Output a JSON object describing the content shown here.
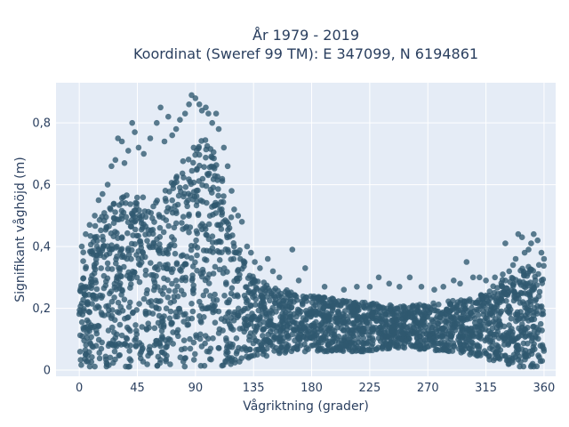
{
  "chart_data": {
    "type": "scatter",
    "title": "År 1979 - 2019",
    "subtitle": "Koordinat (Sweref 99 TM): E 347099, N 6194861",
    "xlabel": "Vågriktning (grader)",
    "ylabel": "Signifikant våghöjd (m)",
    "xlim": [
      -18,
      369
    ],
    "ylim": [
      -0.02,
      0.93
    ],
    "xticks": [
      0,
      45,
      90,
      135,
      180,
      225,
      270,
      315,
      360
    ],
    "xtick_labels": [
      "0",
      "45",
      "90",
      "135",
      "180",
      "225",
      "270",
      "315",
      "360"
    ],
    "yticks": [
      0,
      0.2,
      0.4,
      0.6,
      0.8
    ],
    "ytick_labels": [
      "0",
      "0,2",
      "0,4",
      "0,6",
      "0,8"
    ],
    "grid": true,
    "marker_color": "#2f5870",
    "plot_bgcolor": "#e5ecf6",
    "envelope": {
      "x": [
        0,
        10,
        20,
        30,
        40,
        50,
        60,
        70,
        80,
        90,
        100,
        110,
        120,
        130,
        140,
        150,
        160,
        170,
        180,
        200,
        220,
        240,
        260,
        280,
        300,
        310,
        320,
        330,
        340,
        350,
        360
      ],
      "top": [
        0.38,
        0.45,
        0.52,
        0.57,
        0.58,
        0.56,
        0.55,
        0.6,
        0.68,
        0.74,
        0.75,
        0.66,
        0.46,
        0.33,
        0.29,
        0.27,
        0.26,
        0.25,
        0.24,
        0.23,
        0.22,
        0.21,
        0.21,
        0.22,
        0.23,
        0.24,
        0.27,
        0.3,
        0.33,
        0.34,
        0.36
      ],
      "bottom": [
        0.01,
        0.01,
        0.01,
        0.01,
        0.01,
        0.01,
        0.01,
        0.01,
        0.01,
        0.01,
        0.01,
        0.01,
        0.02,
        0.03,
        0.04,
        0.05,
        0.05,
        0.06,
        0.06,
        0.06,
        0.06,
        0.07,
        0.07,
        0.06,
        0.05,
        0.04,
        0.03,
        0.02,
        0.01,
        0.01,
        0.01
      ]
    },
    "outliers": [
      {
        "x": 2,
        "y": 0.4
      },
      {
        "x": 5,
        "y": 0.44
      },
      {
        "x": 8,
        "y": 0.47
      },
      {
        "x": 12,
        "y": 0.5
      },
      {
        "x": 15,
        "y": 0.55
      },
      {
        "x": 18,
        "y": 0.57
      },
      {
        "x": 22,
        "y": 0.6
      },
      {
        "x": 25,
        "y": 0.66
      },
      {
        "x": 28,
        "y": 0.68
      },
      {
        "x": 30,
        "y": 0.75
      },
      {
        "x": 33,
        "y": 0.74
      },
      {
        "x": 35,
        "y": 0.67
      },
      {
        "x": 38,
        "y": 0.71
      },
      {
        "x": 41,
        "y": 0.8
      },
      {
        "x": 43,
        "y": 0.77
      },
      {
        "x": 46,
        "y": 0.72
      },
      {
        "x": 50,
        "y": 0.7
      },
      {
        "x": 55,
        "y": 0.75
      },
      {
        "x": 60,
        "y": 0.8
      },
      {
        "x": 63,
        "y": 0.85
      },
      {
        "x": 66,
        "y": 0.74
      },
      {
        "x": 69,
        "y": 0.82
      },
      {
        "x": 72,
        "y": 0.76
      },
      {
        "x": 75,
        "y": 0.78
      },
      {
        "x": 78,
        "y": 0.81
      },
      {
        "x": 82,
        "y": 0.83
      },
      {
        "x": 85,
        "y": 0.86
      },
      {
        "x": 87,
        "y": 0.89
      },
      {
        "x": 90,
        "y": 0.88
      },
      {
        "x": 93,
        "y": 0.86
      },
      {
        "x": 95,
        "y": 0.84
      },
      {
        "x": 98,
        "y": 0.85
      },
      {
        "x": 100,
        "y": 0.83
      },
      {
        "x": 103,
        "y": 0.8
      },
      {
        "x": 106,
        "y": 0.83
      },
      {
        "x": 108,
        "y": 0.78
      },
      {
        "x": 112,
        "y": 0.72
      },
      {
        "x": 115,
        "y": 0.66
      },
      {
        "x": 118,
        "y": 0.58
      },
      {
        "x": 120,
        "y": 0.52
      },
      {
        "x": 123,
        "y": 0.5
      },
      {
        "x": 126,
        "y": 0.48
      },
      {
        "x": 130,
        "y": 0.4
      },
      {
        "x": 133,
        "y": 0.38
      },
      {
        "x": 136,
        "y": 0.35
      },
      {
        "x": 140,
        "y": 0.33
      },
      {
        "x": 146,
        "y": 0.36
      },
      {
        "x": 150,
        "y": 0.32
      },
      {
        "x": 155,
        "y": 0.3
      },
      {
        "x": 165,
        "y": 0.39
      },
      {
        "x": 170,
        "y": 0.29
      },
      {
        "x": 175,
        "y": 0.33
      },
      {
        "x": 190,
        "y": 0.27
      },
      {
        "x": 205,
        "y": 0.26
      },
      {
        "x": 215,
        "y": 0.27
      },
      {
        "x": 225,
        "y": 0.27
      },
      {
        "x": 232,
        "y": 0.3
      },
      {
        "x": 240,
        "y": 0.28
      },
      {
        "x": 248,
        "y": 0.27
      },
      {
        "x": 256,
        "y": 0.3
      },
      {
        "x": 265,
        "y": 0.27
      },
      {
        "x": 275,
        "y": 0.26
      },
      {
        "x": 282,
        "y": 0.27
      },
      {
        "x": 290,
        "y": 0.29
      },
      {
        "x": 295,
        "y": 0.28
      },
      {
        "x": 300,
        "y": 0.35
      },
      {
        "x": 305,
        "y": 0.3
      },
      {
        "x": 310,
        "y": 0.3
      },
      {
        "x": 315,
        "y": 0.29
      },
      {
        "x": 322,
        "y": 0.3
      },
      {
        "x": 328,
        "y": 0.31
      },
      {
        "x": 330,
        "y": 0.41
      },
      {
        "x": 333,
        "y": 0.32
      },
      {
        "x": 336,
        "y": 0.34
      },
      {
        "x": 338,
        "y": 0.36
      },
      {
        "x": 340,
        "y": 0.44
      },
      {
        "x": 343,
        "y": 0.43
      },
      {
        "x": 345,
        "y": 0.38
      },
      {
        "x": 348,
        "y": 0.39
      },
      {
        "x": 350,
        "y": 0.41
      },
      {
        "x": 352,
        "y": 0.44
      },
      {
        "x": 355,
        "y": 0.42
      },
      {
        "x": 358,
        "y": 0.38
      },
      {
        "x": 360,
        "y": 0.36
      }
    ]
  }
}
